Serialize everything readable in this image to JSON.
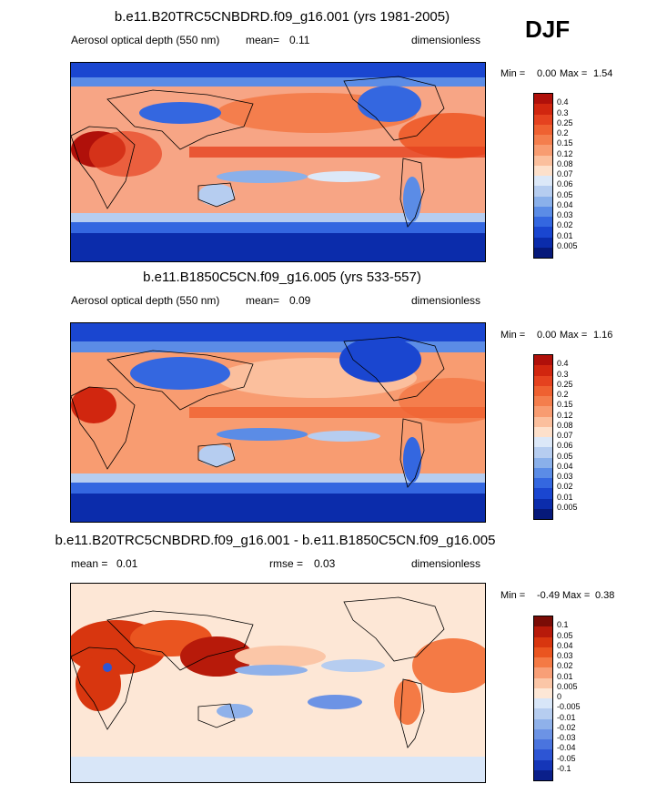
{
  "season": "DJF",
  "colors": {
    "seq": [
      "#b0100a",
      "#d1260f",
      "#e5421f",
      "#ef6131",
      "#f47e4d",
      "#f89c71",
      "#fbbf9d",
      "#fde0cb",
      "#dce8f8",
      "#b6cdf0",
      "#8ab0ea",
      "#5b8ce6",
      "#3467e0",
      "#1a46d0",
      "#0b2cab",
      "#06197a"
    ],
    "div": [
      "#7a0c06",
      "#b71a0a",
      "#d8360f",
      "#ea5520",
      "#f47a45",
      "#f89f77",
      "#fbc6a7",
      "#fde7d6",
      "#d8e6f8",
      "#b6cdf0",
      "#8fb1ea",
      "#6c93e5",
      "#4a74de",
      "#2d55d4",
      "#1536b8",
      "#0a1f8a"
    ]
  },
  "panels": [
    {
      "title": "b.e11.B20TRC5CNBDRD.f09_g16.001 (yrs 1981-2005)",
      "left_label": "Aerosol optical depth (550 nm)",
      "stat_label": "mean=",
      "stat_value": "0.11",
      "units": "dimensionless",
      "min_label": "Min =",
      "min": "0.00",
      "max_label": "Max =",
      "max": "1.54",
      "levels": [
        "0.4",
        "0.3",
        "0.25",
        "0.2",
        "0.15",
        "0.12",
        "0.08",
        "0.07",
        "0.06",
        "0.05",
        "0.04",
        "0.03",
        "0.02",
        "0.01",
        "0.005"
      ]
    },
    {
      "title": "b.e11.B1850C5CN.f09_g16.005 (yrs 533-557)",
      "left_label": "Aerosol optical depth (550 nm)",
      "stat_label": "mean=",
      "stat_value": "0.09",
      "units": "dimensionless",
      "min_label": "Min =",
      "min": "0.00",
      "max_label": "Max =",
      "max": "1.16",
      "levels": [
        "0.4",
        "0.3",
        "0.25",
        "0.2",
        "0.15",
        "0.12",
        "0.08",
        "0.07",
        "0.06",
        "0.05",
        "0.04",
        "0.03",
        "0.02",
        "0.01",
        "0.005"
      ]
    },
    {
      "title": "b.e11.B20TRC5CNBDRD.f09_g16.001 - b.e11.B1850C5CN.f09_g16.005",
      "left_label": "mean =",
      "stat_label": "rmse =",
      "stat_value": "0.03",
      "left_value": "0.01",
      "units": "dimensionless",
      "min_label": "Min =",
      "min": "-0.49",
      "max_label": "Max =",
      "max": "0.38",
      "levels": [
        "0.1",
        "0.05",
        "0.04",
        "0.03",
        "0.02",
        "0.01",
        "0.005",
        "0",
        "-0.005",
        "-0.01",
        "-0.02",
        "-0.03",
        "-0.04",
        "-0.05",
        "-0.1"
      ]
    }
  ]
}
